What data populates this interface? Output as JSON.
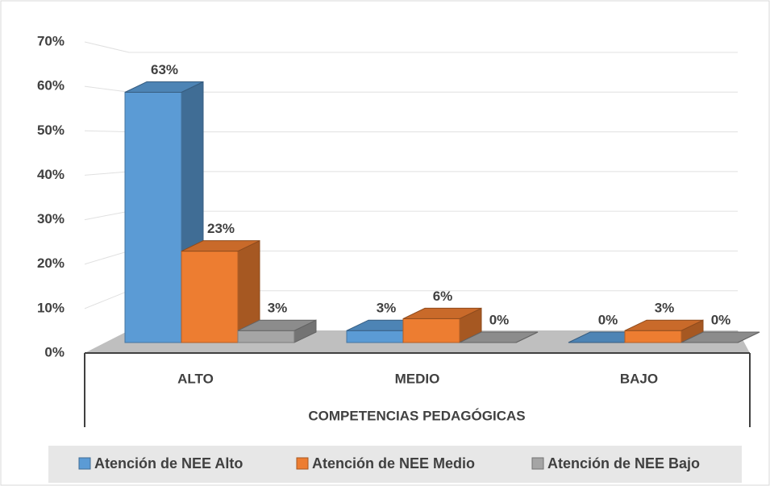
{
  "chart_data": {
    "type": "bar3d",
    "x_label": "COMPETENCIAS PEDAGÓGICAS",
    "categories": [
      "ALTO",
      "MEDIO",
      "BAJO"
    ],
    "series": [
      {
        "name": "Atención de NEE Alto",
        "color": "#5b9bd5",
        "values": [
          63,
          3,
          0
        ],
        "value_labels": [
          "63%",
          "3%",
          "0%"
        ]
      },
      {
        "name": "Atención de NEE Medio",
        "color": "#ed7d31",
        "values": [
          23,
          6,
          3
        ],
        "value_labels": [
          "23%",
          "6%",
          "3%"
        ]
      },
      {
        "name": "Atención de NEE Bajo",
        "color": "#a5a5a5",
        "values": [
          3,
          0,
          0
        ],
        "value_labels": [
          "3%",
          "0%",
          "0%"
        ]
      }
    ],
    "ylim": [
      0,
      70
    ],
    "yticks": [
      {
        "value": 0,
        "label": "0%"
      },
      {
        "value": 10,
        "label": "10%"
      },
      {
        "value": 20,
        "label": "20%"
      },
      {
        "value": 30,
        "label": "30%"
      },
      {
        "value": 40,
        "label": "40%"
      },
      {
        "value": 50,
        "label": "50%"
      },
      {
        "value": 60,
        "label": "60%"
      },
      {
        "value": 70,
        "label": "70%"
      }
    ],
    "grid": true,
    "legend": "bottom"
  }
}
